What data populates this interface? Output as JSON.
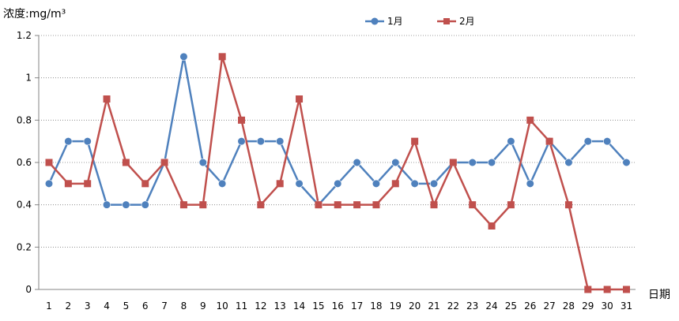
{
  "chart_data": {
    "type": "line",
    "ylabel": "浓度:mg/m³",
    "xlabel": "日期",
    "ylim": [
      0,
      1.2
    ],
    "yticks": [
      "0",
      "0.2",
      "0.4",
      "0.6",
      "0.8",
      "1",
      "1.2"
    ],
    "categories": [
      "1",
      "2",
      "3",
      "4",
      "5",
      "6",
      "7",
      "8",
      "9",
      "10",
      "11",
      "12",
      "13",
      "14",
      "15",
      "16",
      "17",
      "18",
      "19",
      "20",
      "21",
      "22",
      "23",
      "24",
      "25",
      "26",
      "27",
      "28",
      "29",
      "30",
      "31"
    ],
    "grid": true,
    "legend_position": "top",
    "series": [
      {
        "name": "1月",
        "color": "#4f81bd",
        "marker": "circle",
        "values": [
          0.5,
          0.7,
          0.7,
          0.4,
          0.4,
          0.4,
          0.6,
          1.1,
          0.6,
          0.5,
          0.7,
          0.7,
          0.7,
          0.5,
          0.4,
          0.5,
          0.6,
          0.5,
          0.6,
          0.5,
          0.5,
          0.6,
          0.6,
          0.6,
          0.7,
          0.5,
          0.7,
          0.6,
          0.7,
          0.7,
          0.6
        ]
      },
      {
        "name": "2月",
        "color": "#c0504d",
        "marker": "square",
        "values": [
          0.6,
          0.5,
          0.5,
          0.9,
          0.6,
          0.5,
          0.6,
          0.4,
          0.4,
          1.1,
          0.8,
          0.4,
          0.5,
          0.9,
          0.4,
          0.4,
          0.4,
          0.4,
          0.5,
          0.7,
          0.4,
          0.6,
          0.4,
          0.3,
          0.4,
          0.8,
          0.7,
          0.4,
          0,
          0,
          0
        ]
      }
    ]
  }
}
